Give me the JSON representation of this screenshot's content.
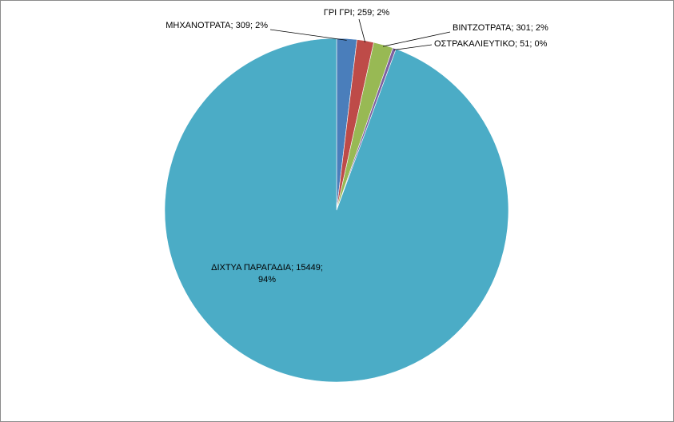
{
  "chart_data": {
    "type": "pie",
    "title": "",
    "legend": "none",
    "label_separator": "; ",
    "slices": [
      {
        "label": "ΜΗΧΑΝΟΤΡΑΤΑ",
        "value": 309,
        "percent": "2%",
        "color": "#4a7ebb"
      },
      {
        "label": "ΓΡΙ ΓΡΙ",
        "value": 259,
        "percent": "2%",
        "color": "#be4b48"
      },
      {
        "label": "ΒΙΝΤΖΟΤΡΑΤΑ",
        "value": 301,
        "percent": "2%",
        "color": "#98b954"
      },
      {
        "label": "ΟΣΤΡΑΚΑΛΙΕΥΤΙΚΟ",
        "value": 51,
        "percent": "0%",
        "color": "#7d60a0"
      },
      {
        "label": "ΔΙΧΤΥΑ ΠΑΡΑΓΑΔΙΑ",
        "value": 15449,
        "percent": "94%",
        "color": "#4bacc6"
      }
    ]
  }
}
